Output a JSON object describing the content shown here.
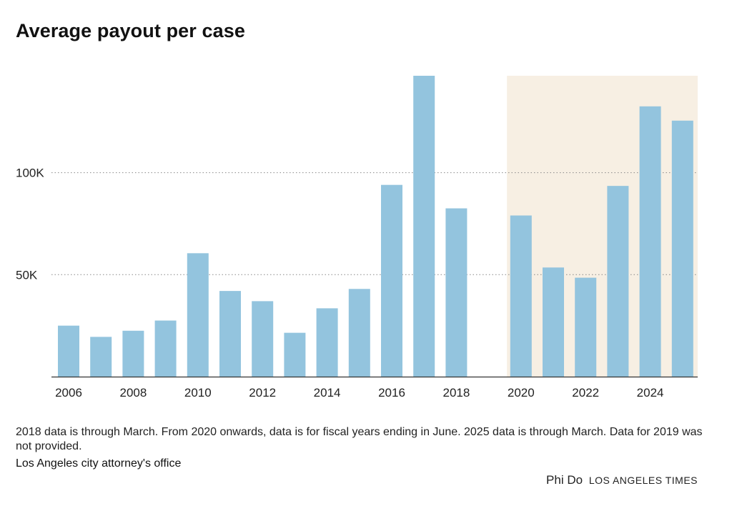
{
  "chart_data": {
    "type": "bar",
    "title": "Average payout per case",
    "categories": [
      "2006",
      "2007",
      "2008",
      "2009",
      "2010",
      "2011",
      "2012",
      "2013",
      "2014",
      "2015",
      "2016",
      "2017",
      "2018",
      "2019",
      "2020",
      "2021",
      "2022",
      "2023",
      "2024",
      "2025"
    ],
    "values": [
      25000,
      19500,
      22500,
      27500,
      60500,
      42000,
      37000,
      21500,
      33500,
      43000,
      94000,
      147500,
      82500,
      null,
      79000,
      53500,
      48500,
      93500,
      132500,
      125500
    ],
    "x_tick_labels": [
      "2006",
      "2008",
      "2010",
      "2012",
      "2014",
      "2016",
      "2018",
      "2020",
      "2022",
      "2024"
    ],
    "y_tick_labels": [
      "50K",
      "100K"
    ],
    "y_ticks": [
      50000,
      100000
    ],
    "ylim": [
      0,
      147500
    ],
    "grid": "horizontal dotted",
    "highlight_range": [
      "2020",
      "2025"
    ],
    "colors": {
      "bar": "#93c4de",
      "highlight_band": "#f7efe3",
      "axis": "#333333",
      "grid": "#888888"
    }
  },
  "notes": "2018 data is through March. From 2020 onwards, data is for fiscal years ending in June. 2025 data is through March. Data for 2019 was not provided.",
  "source": "Los Angeles city attorney's office",
  "credit": {
    "author": "Phi Do",
    "organization": "LOS ANGELES TIMES"
  }
}
